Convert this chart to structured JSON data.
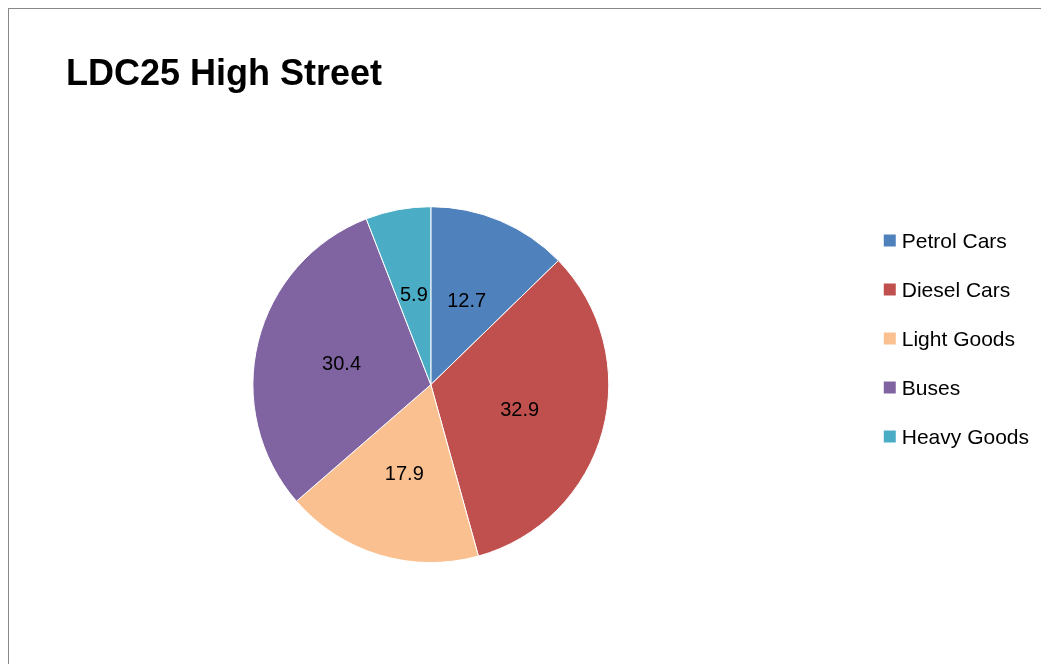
{
  "chart_data": {
    "type": "pie",
    "title": "LDC25 High Street",
    "categories": [
      "Petrol Cars",
      "Diesel Cars",
      "Light Goods",
      "Buses",
      "Heavy Goods"
    ],
    "values": [
      12.7,
      32.9,
      17.9,
      30.4,
      5.9
    ],
    "colors": [
      "#4f81bd",
      "#c0504d",
      "#fac090",
      "#8064a2",
      "#4bacc6"
    ],
    "data_labels": true,
    "legend": "right"
  }
}
